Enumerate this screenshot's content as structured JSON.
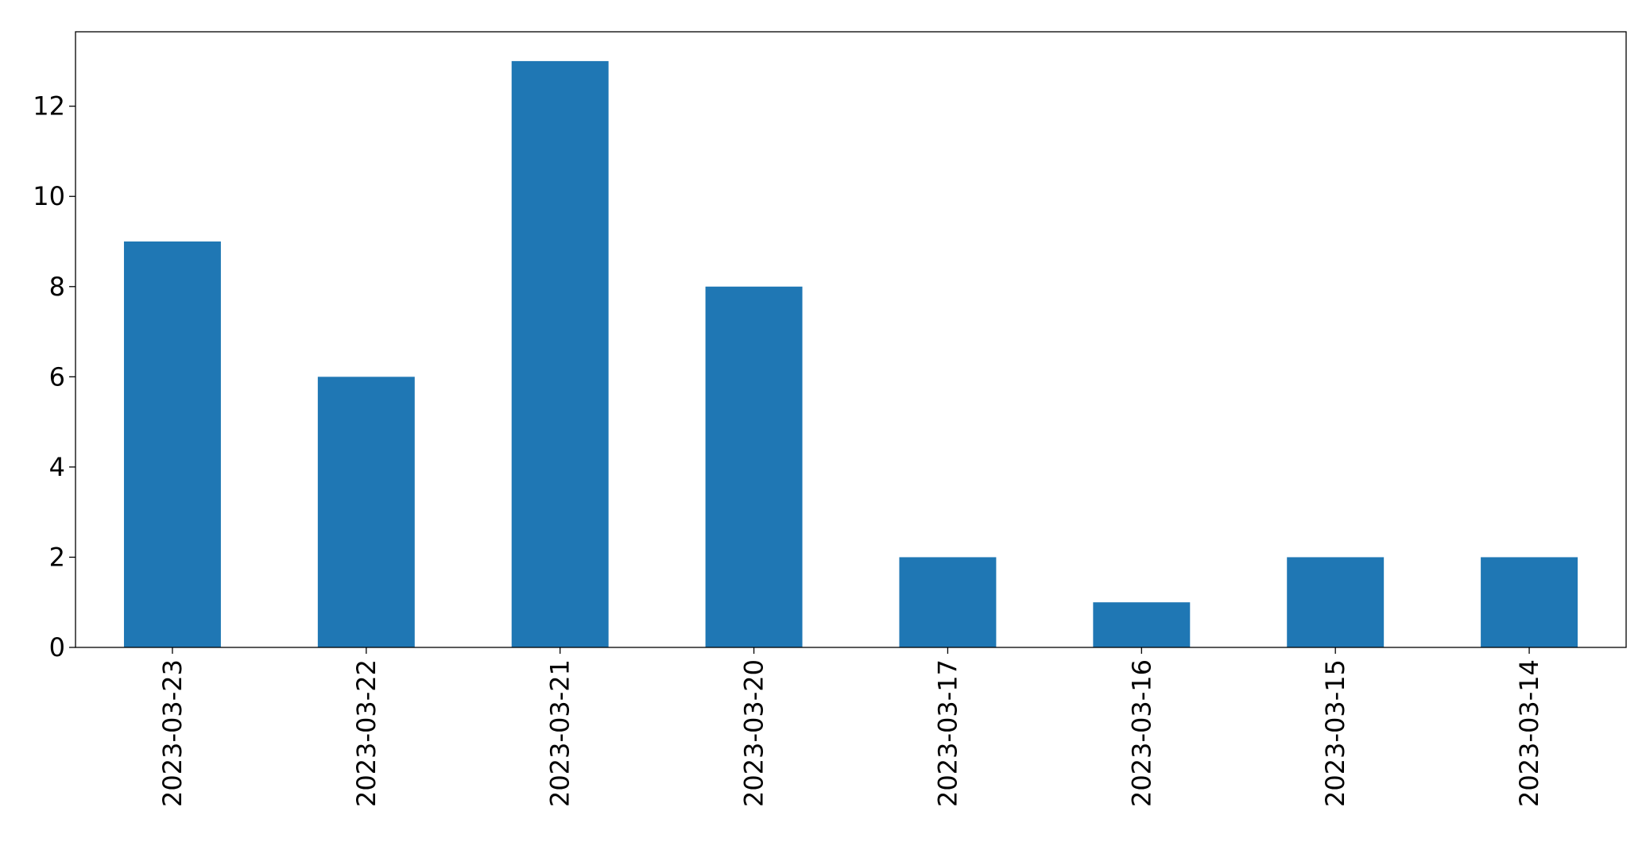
{
  "chart_data": {
    "type": "bar",
    "categories": [
      "2023-03-23",
      "2023-03-22",
      "2023-03-21",
      "2023-03-20",
      "2023-03-17",
      "2023-03-16",
      "2023-03-15",
      "2023-03-14"
    ],
    "values": [
      9,
      6,
      13,
      8,
      2,
      1,
      2,
      2
    ],
    "title": "",
    "xlabel": "",
    "ylabel": "",
    "ylim": [
      0,
      13.65
    ],
    "yticks": [
      0,
      2,
      4,
      6,
      8,
      10,
      12
    ],
    "grid": false,
    "legend": "none",
    "colors": {
      "bar": "#1f77b4",
      "axis": "#000000",
      "background": "#ffffff"
    }
  }
}
